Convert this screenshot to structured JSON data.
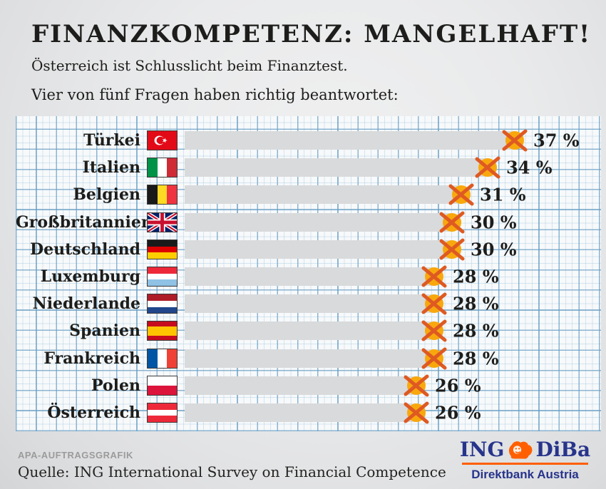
{
  "header": {
    "title": "FINANZKOMPETENZ: MANGELHAFT!",
    "subtitle": "Österreich ist Schlusslicht beim Finanztest.",
    "intro": "Vier von fünf Fragen haben richtig beantwortet:"
  },
  "chart_data": {
    "type": "bar",
    "orientation": "horizontal",
    "title": "FINANZKOMPETENZ: MANGELHAFT!",
    "subtitle": "Vier von fünf Fragen haben richtig beantwortet:",
    "unit": "%",
    "value_suffix": " %",
    "xlim": [
      0,
      40
    ],
    "grid": "graph-paper",
    "legend": "none",
    "bar_color": "#d9dadb",
    "marker": "crossed-circle",
    "marker_circle_color": "#f8a80d",
    "marker_cross_color": "#de5a22",
    "categories": [
      "Türkei",
      "Italien",
      "Belgien",
      "Großbritannien",
      "Deutschland",
      "Luxemburg",
      "Niederlande",
      "Spanien",
      "Frankreich",
      "Polen",
      "Österreich"
    ],
    "values": [
      37,
      34,
      31,
      30,
      30,
      28,
      28,
      28,
      28,
      26,
      26
    ],
    "countries": [
      {
        "name": "Türkei",
        "value": 37,
        "flag": {
          "layout": "crescent",
          "bg": "#e30a17"
        }
      },
      {
        "name": "Italien",
        "value": 34,
        "flag": {
          "layout": "v",
          "stripes": [
            [
              "#009246",
              1
            ],
            [
              "#ffffff",
              1
            ],
            [
              "#ce2b37",
              1
            ]
          ]
        }
      },
      {
        "name": "Belgien",
        "value": 31,
        "flag": {
          "layout": "v",
          "stripes": [
            [
              "#1a1a1a",
              1
            ],
            [
              "#fdda24",
              1
            ],
            [
              "#ef3340",
              1
            ]
          ]
        }
      },
      {
        "name": "Großbritannien",
        "value": 30,
        "flag": {
          "layout": "uk"
        }
      },
      {
        "name": "Deutschland",
        "value": 30,
        "flag": {
          "layout": "h",
          "stripes": [
            [
              "#1a1a1a",
              1
            ],
            [
              "#dd0000",
              1
            ],
            [
              "#ffce00",
              1
            ]
          ]
        }
      },
      {
        "name": "Luxemburg",
        "value": 28,
        "flag": {
          "layout": "h",
          "stripes": [
            [
              "#ed2939",
              1
            ],
            [
              "#ffffff",
              1
            ],
            [
              "#8fc2e4",
              1
            ]
          ]
        }
      },
      {
        "name": "Niederlande",
        "value": 28,
        "flag": {
          "layout": "h",
          "stripes": [
            [
              "#ae1c28",
              1
            ],
            [
              "#ffffff",
              1
            ],
            [
              "#21468b",
              1
            ]
          ]
        }
      },
      {
        "name": "Spanien",
        "value": 28,
        "flag": {
          "layout": "h",
          "stripes": [
            [
              "#c60b1e",
              1
            ],
            [
              "#ffc400",
              2
            ],
            [
              "#c60b1e",
              1
            ]
          ]
        }
      },
      {
        "name": "Frankreich",
        "value": 28,
        "flag": {
          "layout": "v",
          "stripes": [
            [
              "#0055a4",
              1
            ],
            [
              "#ffffff",
              1
            ],
            [
              "#ef4135",
              1
            ]
          ]
        }
      },
      {
        "name": "Polen",
        "value": 26,
        "flag": {
          "layout": "h",
          "stripes": [
            [
              "#ffffff",
              1
            ],
            [
              "#dc143c",
              1
            ]
          ]
        }
      },
      {
        "name": "Österreich",
        "value": 26,
        "flag": {
          "layout": "h",
          "stripes": [
            [
              "#ed2939",
              1
            ],
            [
              "#ffffff",
              1
            ],
            [
              "#ed2939",
              1
            ]
          ]
        }
      }
    ]
  },
  "footer": {
    "credit": "APA-AUFTRAGSGRAFIK",
    "source": "Quelle: ING International Survey on Financial Competence",
    "logo": {
      "ing": "ING",
      "diba": "DiBa",
      "tagline": "Direktbank Austria",
      "orange": "#ff5f00",
      "navy": "#27348b"
    }
  }
}
